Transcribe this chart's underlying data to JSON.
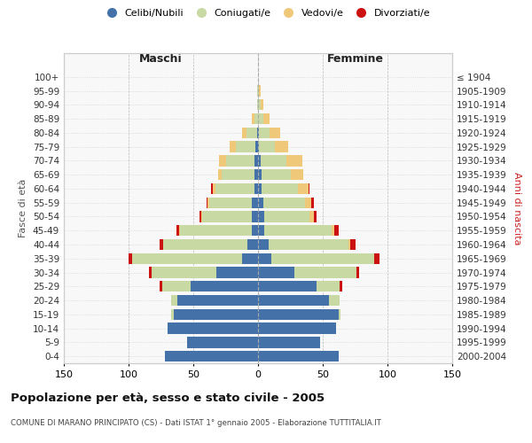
{
  "age_groups": [
    "0-4",
    "5-9",
    "10-14",
    "15-19",
    "20-24",
    "25-29",
    "30-34",
    "35-39",
    "40-44",
    "45-49",
    "50-54",
    "55-59",
    "60-64",
    "65-69",
    "70-74",
    "75-79",
    "80-84",
    "85-89",
    "90-94",
    "95-99",
    "100+"
  ],
  "birth_years": [
    "2000-2004",
    "1995-1999",
    "1990-1994",
    "1985-1989",
    "1980-1984",
    "1975-1979",
    "1970-1974",
    "1965-1969",
    "1960-1964",
    "1955-1959",
    "1950-1954",
    "1945-1949",
    "1940-1944",
    "1935-1939",
    "1930-1934",
    "1925-1929",
    "1920-1924",
    "1915-1919",
    "1910-1914",
    "1905-1909",
    "≤ 1904"
  ],
  "male": {
    "celibi": [
      72,
      55,
      70,
      65,
      62,
      52,
      32,
      12,
      8,
      5,
      5,
      5,
      3,
      3,
      3,
      2,
      1,
      0,
      0,
      0,
      0
    ],
    "coniugati": [
      0,
      0,
      0,
      2,
      5,
      22,
      50,
      85,
      65,
      55,
      38,
      33,
      30,
      25,
      22,
      15,
      8,
      3,
      1,
      1,
      0
    ],
    "vedovi": [
      0,
      0,
      0,
      0,
      0,
      0,
      0,
      0,
      0,
      1,
      1,
      1,
      2,
      3,
      5,
      5,
      3,
      2,
      0,
      0,
      0
    ],
    "divorziati": [
      0,
      0,
      0,
      0,
      0,
      2,
      2,
      3,
      3,
      2,
      1,
      1,
      1,
      0,
      0,
      0,
      0,
      0,
      0,
      0,
      0
    ]
  },
  "female": {
    "nubili": [
      62,
      48,
      60,
      62,
      55,
      45,
      28,
      10,
      8,
      5,
      5,
      4,
      3,
      3,
      2,
      1,
      1,
      0,
      0,
      0,
      0
    ],
    "coniugate": [
      0,
      0,
      0,
      2,
      8,
      18,
      48,
      80,
      62,
      52,
      35,
      32,
      28,
      22,
      20,
      12,
      8,
      4,
      2,
      1,
      0
    ],
    "vedove": [
      0,
      0,
      0,
      0,
      0,
      0,
      0,
      0,
      1,
      2,
      3,
      5,
      8,
      10,
      12,
      10,
      8,
      5,
      2,
      1,
      0
    ],
    "divorziate": [
      0,
      0,
      0,
      0,
      0,
      2,
      2,
      4,
      4,
      3,
      2,
      2,
      1,
      0,
      0,
      0,
      0,
      0,
      0,
      0,
      0
    ]
  },
  "colors": {
    "celibi": "#4472a8",
    "coniugati": "#c8d9a4",
    "vedovi": "#f0c87a",
    "divorziati": "#cc1111"
  },
  "xlim": 150,
  "title": "Popolazione per età, sesso e stato civile - 2005",
  "subtitle": "COMUNE DI MARANO PRINCIPATO (CS) - Dati ISTAT 1° gennaio 2005 - Elaborazione TUTTITALIA.IT",
  "ylabel_left": "Fasce di età",
  "ylabel_right": "Anni di nascita",
  "xlabel_left": "Maschi",
  "xlabel_right": "Femmine"
}
